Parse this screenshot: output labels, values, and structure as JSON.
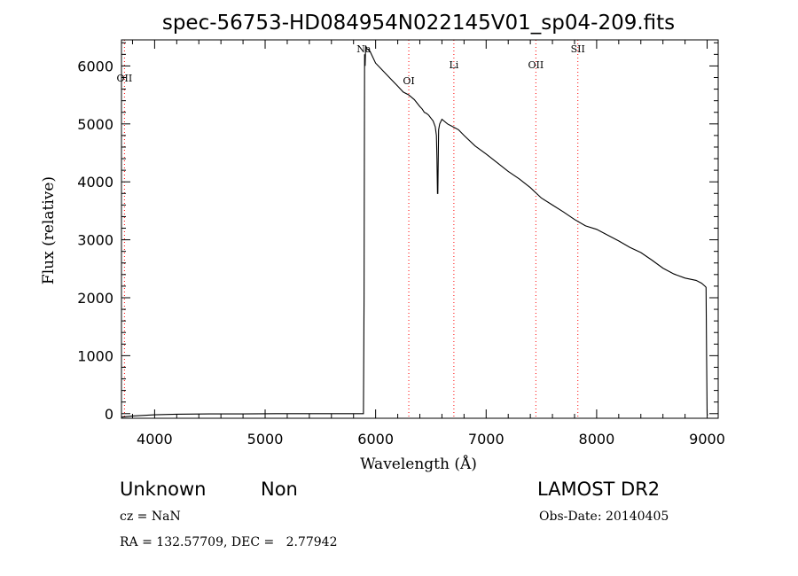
{
  "chart_data": {
    "type": "line",
    "title": "spec-56753-HD084954N022145V01_sp04-209.fits",
    "xlabel": "Wavelength (Å)",
    "ylabel": "Flux (relative)",
    "xlim": [
      3700,
      9100
    ],
    "ylim": [
      -80,
      6450
    ],
    "xticks": [
      4000,
      5000,
      6000,
      7000,
      8000,
      9000
    ],
    "yticks": [
      0,
      1000,
      2000,
      3000,
      4000,
      5000,
      6000
    ],
    "grid": false,
    "series": [
      {
        "x": [
          3700,
          3800,
          4000,
          4200,
          4500,
          4800,
          5100,
          5400,
          5700,
          5800,
          5890,
          5895,
          5900,
          5905,
          5910,
          5920,
          5950,
          6000,
          6050,
          6100,
          6150,
          6200,
          6250,
          6300,
          6350,
          6400,
          6420,
          6440,
          6460,
          6480,
          6500,
          6520,
          6540,
          6550,
          6555,
          6560,
          6563,
          6566,
          6570,
          6580,
          6600,
          6650,
          6700,
          6750,
          6800,
          6900,
          7000,
          7100,
          7200,
          7300,
          7400,
          7500,
          7600,
          7700,
          7800,
          7900,
          8000,
          8100,
          8200,
          8300,
          8400,
          8500,
          8600,
          8700,
          8800,
          8900,
          8950,
          8980,
          8990,
          8995,
          9000,
          9003
        ],
        "y": [
          -60,
          -40,
          -20,
          -10,
          -5,
          -5,
          0,
          0,
          0,
          0,
          0,
          2000,
          6200,
          6000,
          6350,
          6300,
          6250,
          6050,
          5950,
          5850,
          5750,
          5650,
          5550,
          5500,
          5420,
          5300,
          5260,
          5200,
          5180,
          5150,
          5100,
          5050,
          4950,
          4800,
          4400,
          3800,
          3800,
          4300,
          4900,
          5000,
          5080,
          5000,
          4950,
          4900,
          4800,
          4620,
          4480,
          4330,
          4180,
          4050,
          3900,
          3720,
          3600,
          3480,
          3350,
          3240,
          3180,
          3080,
          2980,
          2870,
          2780,
          2650,
          2510,
          2410,
          2340,
          2300,
          2250,
          2200,
          2180,
          1000,
          0,
          -30
        ]
      }
    ],
    "lines": [
      {
        "label": "OII",
        "x": 3727,
        "color": "#ff0000"
      },
      {
        "label": "Na",
        "x": 5893,
        "color": "#ff0000"
      },
      {
        "label": "OI",
        "x": 6300,
        "color": "#ff0000"
      },
      {
        "label": "Li",
        "x": 6708,
        "color": "#ff0000"
      },
      {
        "label": "OII",
        "x": 7450,
        "color": "#ff0000"
      },
      {
        "label": "SII",
        "x": 7830,
        "color": "#ff0000"
      }
    ]
  },
  "info": {
    "class": "Unknown",
    "subclass": "Non",
    "survey": "LAMOST DR2",
    "cz": "cz = NaN",
    "obs_date": "Obs-Date: 20140405",
    "radec": "RA = 132.57709, DEC =   2.77942"
  }
}
